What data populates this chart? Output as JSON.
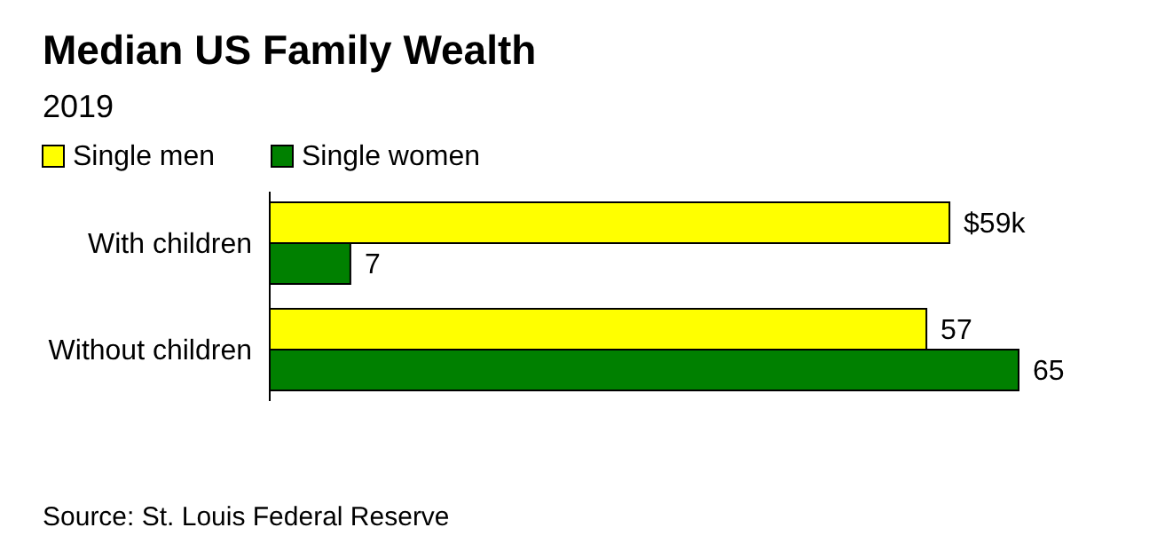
{
  "chart_data": {
    "type": "bar",
    "orientation": "horizontal",
    "title": "Median US Family Wealth",
    "subtitle": "2019",
    "categories": [
      "With children",
      "Without children"
    ],
    "series": [
      {
        "name": "Single men",
        "color": "#ffff00",
        "values": [
          59,
          57
        ],
        "value_labels": [
          "$59k",
          "57"
        ]
      },
      {
        "name": "Single women",
        "color": "#008000",
        "values": [
          7,
          65
        ],
        "value_labels": [
          "7",
          "65"
        ]
      }
    ],
    "legend": "top left",
    "annotations": [
      "Source: St. Louis Federal Reserve"
    ]
  }
}
